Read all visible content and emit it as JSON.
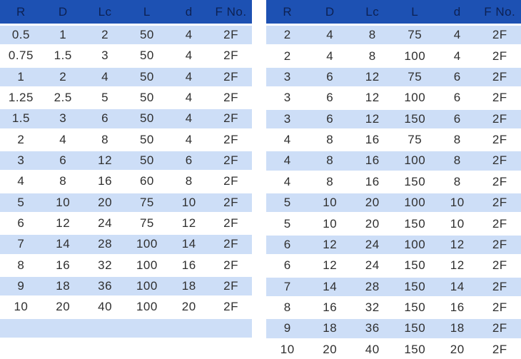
{
  "colors": {
    "header_bg": "#1d51b3",
    "stripe_bg": "#cddef7",
    "row_bg": "#ffffff",
    "header_text": "#0d2153",
    "cell_text": "#2f2f2f"
  },
  "left_table": {
    "columns": [
      "R",
      "D",
      "Lc",
      "L",
      "d",
      "F No."
    ],
    "rows": [
      [
        "0.5",
        "1",
        "2",
        "50",
        "4",
        "2F"
      ],
      [
        "0.75",
        "1.5",
        "3",
        "50",
        "4",
        "2F"
      ],
      [
        "1",
        "2",
        "4",
        "50",
        "4",
        "2F"
      ],
      [
        "1.25",
        "2.5",
        "5",
        "50",
        "4",
        "2F"
      ],
      [
        "1.5",
        "3",
        "6",
        "50",
        "4",
        "2F"
      ],
      [
        "2",
        "4",
        "8",
        "50",
        "4",
        "2F"
      ],
      [
        "3",
        "6",
        "12",
        "50",
        "6",
        "2F"
      ],
      [
        "4",
        "8",
        "16",
        "60",
        "8",
        "2F"
      ],
      [
        "5",
        "10",
        "20",
        "75",
        "10",
        "2F"
      ],
      [
        "6",
        "12",
        "24",
        "75",
        "12",
        "2F"
      ],
      [
        "7",
        "14",
        "28",
        "100",
        "14",
        "2F"
      ],
      [
        "8",
        "16",
        "32",
        "100",
        "16",
        "2F"
      ],
      [
        "9",
        "18",
        "36",
        "100",
        "18",
        "2F"
      ],
      [
        "10",
        "20",
        "40",
        "100",
        "20",
        "2F"
      ],
      [
        "",
        "",
        "",
        "",
        "",
        ""
      ]
    ]
  },
  "right_table": {
    "columns": [
      "R",
      "D",
      "Lc",
      "L",
      "d",
      "F No."
    ],
    "rows": [
      [
        "2",
        "4",
        "8",
        "75",
        "4",
        "2F"
      ],
      [
        "2",
        "4",
        "8",
        "100",
        "4",
        "2F"
      ],
      [
        "3",
        "6",
        "12",
        "75",
        "6",
        "2F"
      ],
      [
        "3",
        "6",
        "12",
        "100",
        "6",
        "2F"
      ],
      [
        "3",
        "6",
        "12",
        "150",
        "6",
        "2F"
      ],
      [
        "4",
        "8",
        "16",
        "75",
        "8",
        "2F"
      ],
      [
        "4",
        "8",
        "16",
        "100",
        "8",
        "2F"
      ],
      [
        "4",
        "8",
        "16",
        "150",
        "8",
        "2F"
      ],
      [
        "5",
        "10",
        "20",
        "100",
        "10",
        "2F"
      ],
      [
        "5",
        "10",
        "20",
        "150",
        "10",
        "2F"
      ],
      [
        "6",
        "12",
        "24",
        "100",
        "12",
        "2F"
      ],
      [
        "6",
        "12",
        "24",
        "150",
        "12",
        "2F"
      ],
      [
        "7",
        "14",
        "28",
        "150",
        "14",
        "2F"
      ],
      [
        "8",
        "16",
        "32",
        "150",
        "16",
        "2F"
      ],
      [
        "9",
        "18",
        "36",
        "150",
        "18",
        "2F"
      ],
      [
        "10",
        "20",
        "40",
        "150",
        "20",
        "2F"
      ]
    ]
  }
}
